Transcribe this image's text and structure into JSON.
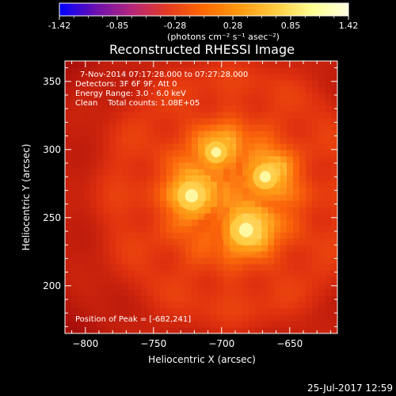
{
  "colorbar": {
    "colors": [
      "#0000ff",
      "#6a0fb0",
      "#b4267a",
      "#e43a22",
      "#ff6a00",
      "#ff9a10",
      "#ffcc40",
      "#ffff90",
      "#ffffe0"
    ],
    "tick_labels": [
      "-1.42",
      "-0.85",
      "-0.28",
      "0.28",
      "0.85",
      "1.42"
    ],
    "unit_label": "(photons cm⁻² s⁻¹ asec⁻²)"
  },
  "chart_data": {
    "type": "heatmap",
    "title": "Reconstructed RHESSI Image",
    "xlabel": "Heliocentric X (arcsec)",
    "ylabel": "Heliocentric Y (arcsec)",
    "xlim": [
      -815,
      -615
    ],
    "ylim": [
      165,
      365
    ],
    "xticks": [
      -800,
      -750,
      -700,
      -650
    ],
    "yticks": [
      200,
      250,
      300,
      350
    ],
    "colorbar_range": [
      -1.42,
      1.42
    ],
    "annotations": [
      "7-Nov-2014 07:17:28.000 to 07:27:28.000",
      "Detectors: 3F 6F 9F, Att 0",
      "Energy Range: 3.0 - 6.0 keV",
      "Clean    Total counts: 1.08E+05"
    ],
    "peak_label": "Position of Peak = [-682,241]",
    "peak": [
      -682,
      241
    ],
    "sources": [
      {
        "x": -682,
        "y": 241,
        "intensity": 1.42
      },
      {
        "x": -722,
        "y": 266,
        "intensity": 1.25
      },
      {
        "x": -668,
        "y": 280,
        "intensity": 1.0
      },
      {
        "x": -704,
        "y": 298,
        "intensity": 0.8
      }
    ]
  },
  "footer": {
    "timestamp": "25-Jul-2017 12:59"
  }
}
